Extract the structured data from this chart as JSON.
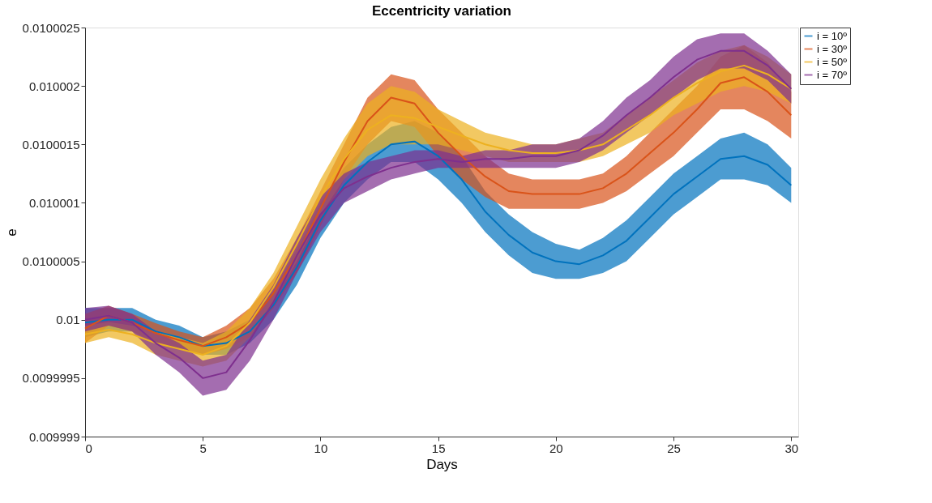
{
  "chart_data": {
    "type": "line",
    "title": "Eccentricity variation",
    "xlabel": "Days",
    "ylabel": "e",
    "x": [
      0,
      1,
      2,
      3,
      4,
      5,
      6,
      7,
      8,
      9,
      10,
      11,
      12,
      13,
      14,
      15,
      16,
      17,
      18,
      19,
      20,
      21,
      22,
      23,
      24,
      25,
      26,
      27,
      28,
      29,
      30
    ],
    "xlim": [
      0,
      30.3
    ],
    "xticks": [
      0,
      5,
      10,
      15,
      20,
      25,
      30
    ],
    "ylim": [
      0.009999,
      0.0100025
    ],
    "yticks": [
      0.009999,
      0.0099995,
      0.01,
      0.0100005,
      0.010001,
      0.0100015,
      0.010002,
      0.0100025
    ],
    "grid": false,
    "legend": "top right",
    "marker": "none",
    "line_style": "solid",
    "series": [
      {
        "name": "i = 10º",
        "color": "#0072bd",
        "values": [
          0.009999975,
          0.01,
          0.01,
          0.0099999,
          0.00999985,
          0.009999775,
          0.0099998,
          0.0099999,
          0.010000125,
          0.01000045,
          0.01000085,
          0.01000115,
          0.01000135,
          0.0100015,
          0.010001525,
          0.0100014,
          0.0100012,
          0.010000925,
          0.010000725,
          0.010000575,
          0.0100005,
          0.010000475,
          0.01000055,
          0.010000675,
          0.010000875,
          0.010001075,
          0.010001225,
          0.010001375,
          0.0100014,
          0.010001325,
          0.01000115
        ],
        "lower": [
          0.00999985,
          0.0099999,
          0.0099999,
          0.0099998,
          0.00999975,
          0.0099997,
          0.0099997,
          0.0099998,
          0.01,
          0.0100003,
          0.0100007,
          0.010001,
          0.0100012,
          0.01000135,
          0.01000135,
          0.0100012,
          0.010001,
          0.01000075,
          0.01000055,
          0.0100004,
          0.01000035,
          0.01000035,
          0.0100004,
          0.0100005,
          0.0100007,
          0.0100009,
          0.01000105,
          0.0100012,
          0.0100012,
          0.01000115,
          0.010001
        ],
        "upper": [
          0.0100001,
          0.0100001,
          0.0100001,
          0.01,
          0.00999995,
          0.00999985,
          0.0099999,
          0.01,
          0.01000025,
          0.0100006,
          0.010001,
          0.0100013,
          0.0100015,
          0.01000165,
          0.0100017,
          0.0100016,
          0.0100014,
          0.0100011,
          0.0100009,
          0.01000075,
          0.01000065,
          0.0100006,
          0.0100007,
          0.01000085,
          0.01000105,
          0.01000125,
          0.0100014,
          0.01000155,
          0.0100016,
          0.0100015,
          0.0100013
        ]
      },
      {
        "name": "i = 30º",
        "color": "#d95319",
        "values": [
          0.009999925,
          0.010000035,
          0.009999975,
          0.009999885,
          0.009999825,
          0.009999775,
          0.00999985,
          0.009999975,
          0.010000225,
          0.01000055,
          0.01000095,
          0.01000135,
          0.0100017,
          0.0100019,
          0.01000185,
          0.0100016,
          0.0100014,
          0.010001225,
          0.0100011,
          0.010001075,
          0.010001075,
          0.010001075,
          0.010001125,
          0.01000125,
          0.010001425,
          0.0100016,
          0.0100018,
          0.010002025,
          0.010002075,
          0.01000195,
          0.01000175
        ],
        "lower": [
          0.0099998,
          0.00999995,
          0.0099999,
          0.0099998,
          0.00999975,
          0.0099997,
          0.00999975,
          0.00999985,
          0.0100001,
          0.0100004,
          0.0100008,
          0.0100012,
          0.0100015,
          0.0100017,
          0.01000165,
          0.0100014,
          0.0100012,
          0.01000105,
          0.01000095,
          0.01000095,
          0.01000095,
          0.01000095,
          0.010001,
          0.0100011,
          0.01000125,
          0.0100014,
          0.0100016,
          0.0100018,
          0.0100018,
          0.0100017,
          0.01000155
        ],
        "upper": [
          0.01000005,
          0.01000012,
          0.01000005,
          0.00999997,
          0.0099999,
          0.00999985,
          0.00999995,
          0.0100001,
          0.01000035,
          0.0100007,
          0.0100011,
          0.0100015,
          0.0100019,
          0.0100021,
          0.01000205,
          0.0100018,
          0.0100016,
          0.0100014,
          0.01000125,
          0.0100012,
          0.0100012,
          0.0100012,
          0.01000125,
          0.0100014,
          0.0100016,
          0.0100018,
          0.010002,
          0.01000225,
          0.01000235,
          0.0100022,
          0.01000195
        ]
      },
      {
        "name": "i = 50º",
        "color": "#edb120",
        "values": [
          0.009999875,
          0.009999915,
          0.009999875,
          0.0099998,
          0.00999975,
          0.0099997,
          0.009999775,
          0.009999975,
          0.010000275,
          0.01000065,
          0.01000105,
          0.010001375,
          0.010001625,
          0.01000175,
          0.010001725,
          0.01000165,
          0.010001575,
          0.0100015,
          0.01000145,
          0.010001425,
          0.010001425,
          0.01000145,
          0.0100015,
          0.010001625,
          0.01000175,
          0.0100019,
          0.010002025,
          0.010002125,
          0.010002175,
          0.0100021,
          0.010001975
        ],
        "lower": [
          0.0099998,
          0.00999985,
          0.0099998,
          0.0099997,
          0.00999965,
          0.0099996,
          0.00999965,
          0.00999985,
          0.01000015,
          0.0100005,
          0.0100009,
          0.0100012,
          0.0100014,
          0.0100015,
          0.0100015,
          0.0100015,
          0.01000145,
          0.0100014,
          0.01000135,
          0.01000135,
          0.01000135,
          0.01000135,
          0.0100014,
          0.0100015,
          0.0100016,
          0.01000175,
          0.01000185,
          0.01000195,
          0.010002,
          0.01000195,
          0.01000185
        ],
        "upper": [
          0.00999995,
          0.00999998,
          0.00999995,
          0.0099999,
          0.00999985,
          0.0099998,
          0.0099999,
          0.0100001,
          0.0100004,
          0.0100008,
          0.0100012,
          0.01000155,
          0.01000185,
          0.010002,
          0.01000195,
          0.0100018,
          0.0100017,
          0.0100016,
          0.01000155,
          0.0100015,
          0.0100015,
          0.01000155,
          0.0100016,
          0.01000175,
          0.0100019,
          0.01000205,
          0.0100022,
          0.0100023,
          0.01000235,
          0.01000225,
          0.0100021
        ]
      },
      {
        "name": "i = 70º",
        "color": "#7e2f8e",
        "values": [
          0.01,
          0.010000035,
          0.009999975,
          0.0099998,
          0.009999675,
          0.0099995,
          0.00999955,
          0.009999825,
          0.01000015,
          0.01000055,
          0.0100009,
          0.010001125,
          0.010001225,
          0.0100013,
          0.01000135,
          0.010001375,
          0.01000135,
          0.010001375,
          0.010001375,
          0.0100014,
          0.0100014,
          0.01000145,
          0.010001575,
          0.01000175,
          0.0100019,
          0.010002075,
          0.010002225,
          0.0100023,
          0.0100023,
          0.010002175,
          0.010001975
        ],
        "lower": [
          0.0099999,
          0.00999995,
          0.0099999,
          0.0099997,
          0.00999955,
          0.00999935,
          0.0099994,
          0.00999965,
          0.01,
          0.0100004,
          0.01000075,
          0.010001,
          0.0100011,
          0.0100012,
          0.01000125,
          0.0100013,
          0.0100013,
          0.0100013,
          0.0100013,
          0.0100013,
          0.0100013,
          0.01000135,
          0.01000145,
          0.0100016,
          0.01000175,
          0.0100019,
          0.01000205,
          0.01000215,
          0.01000215,
          0.01000205,
          0.01000185
        ],
        "upper": [
          0.0100001,
          0.01000012,
          0.01000005,
          0.0099999,
          0.0099998,
          0.00999965,
          0.0099997,
          0.01,
          0.0100003,
          0.0100007,
          0.01000105,
          0.01000125,
          0.01000135,
          0.0100014,
          0.01000145,
          0.01000145,
          0.0100014,
          0.01000145,
          0.01000145,
          0.0100015,
          0.0100015,
          0.01000155,
          0.0100017,
          0.0100019,
          0.01000205,
          0.01000225,
          0.0100024,
          0.01000245,
          0.01000245,
          0.0100023,
          0.0100021
        ]
      }
    ]
  }
}
